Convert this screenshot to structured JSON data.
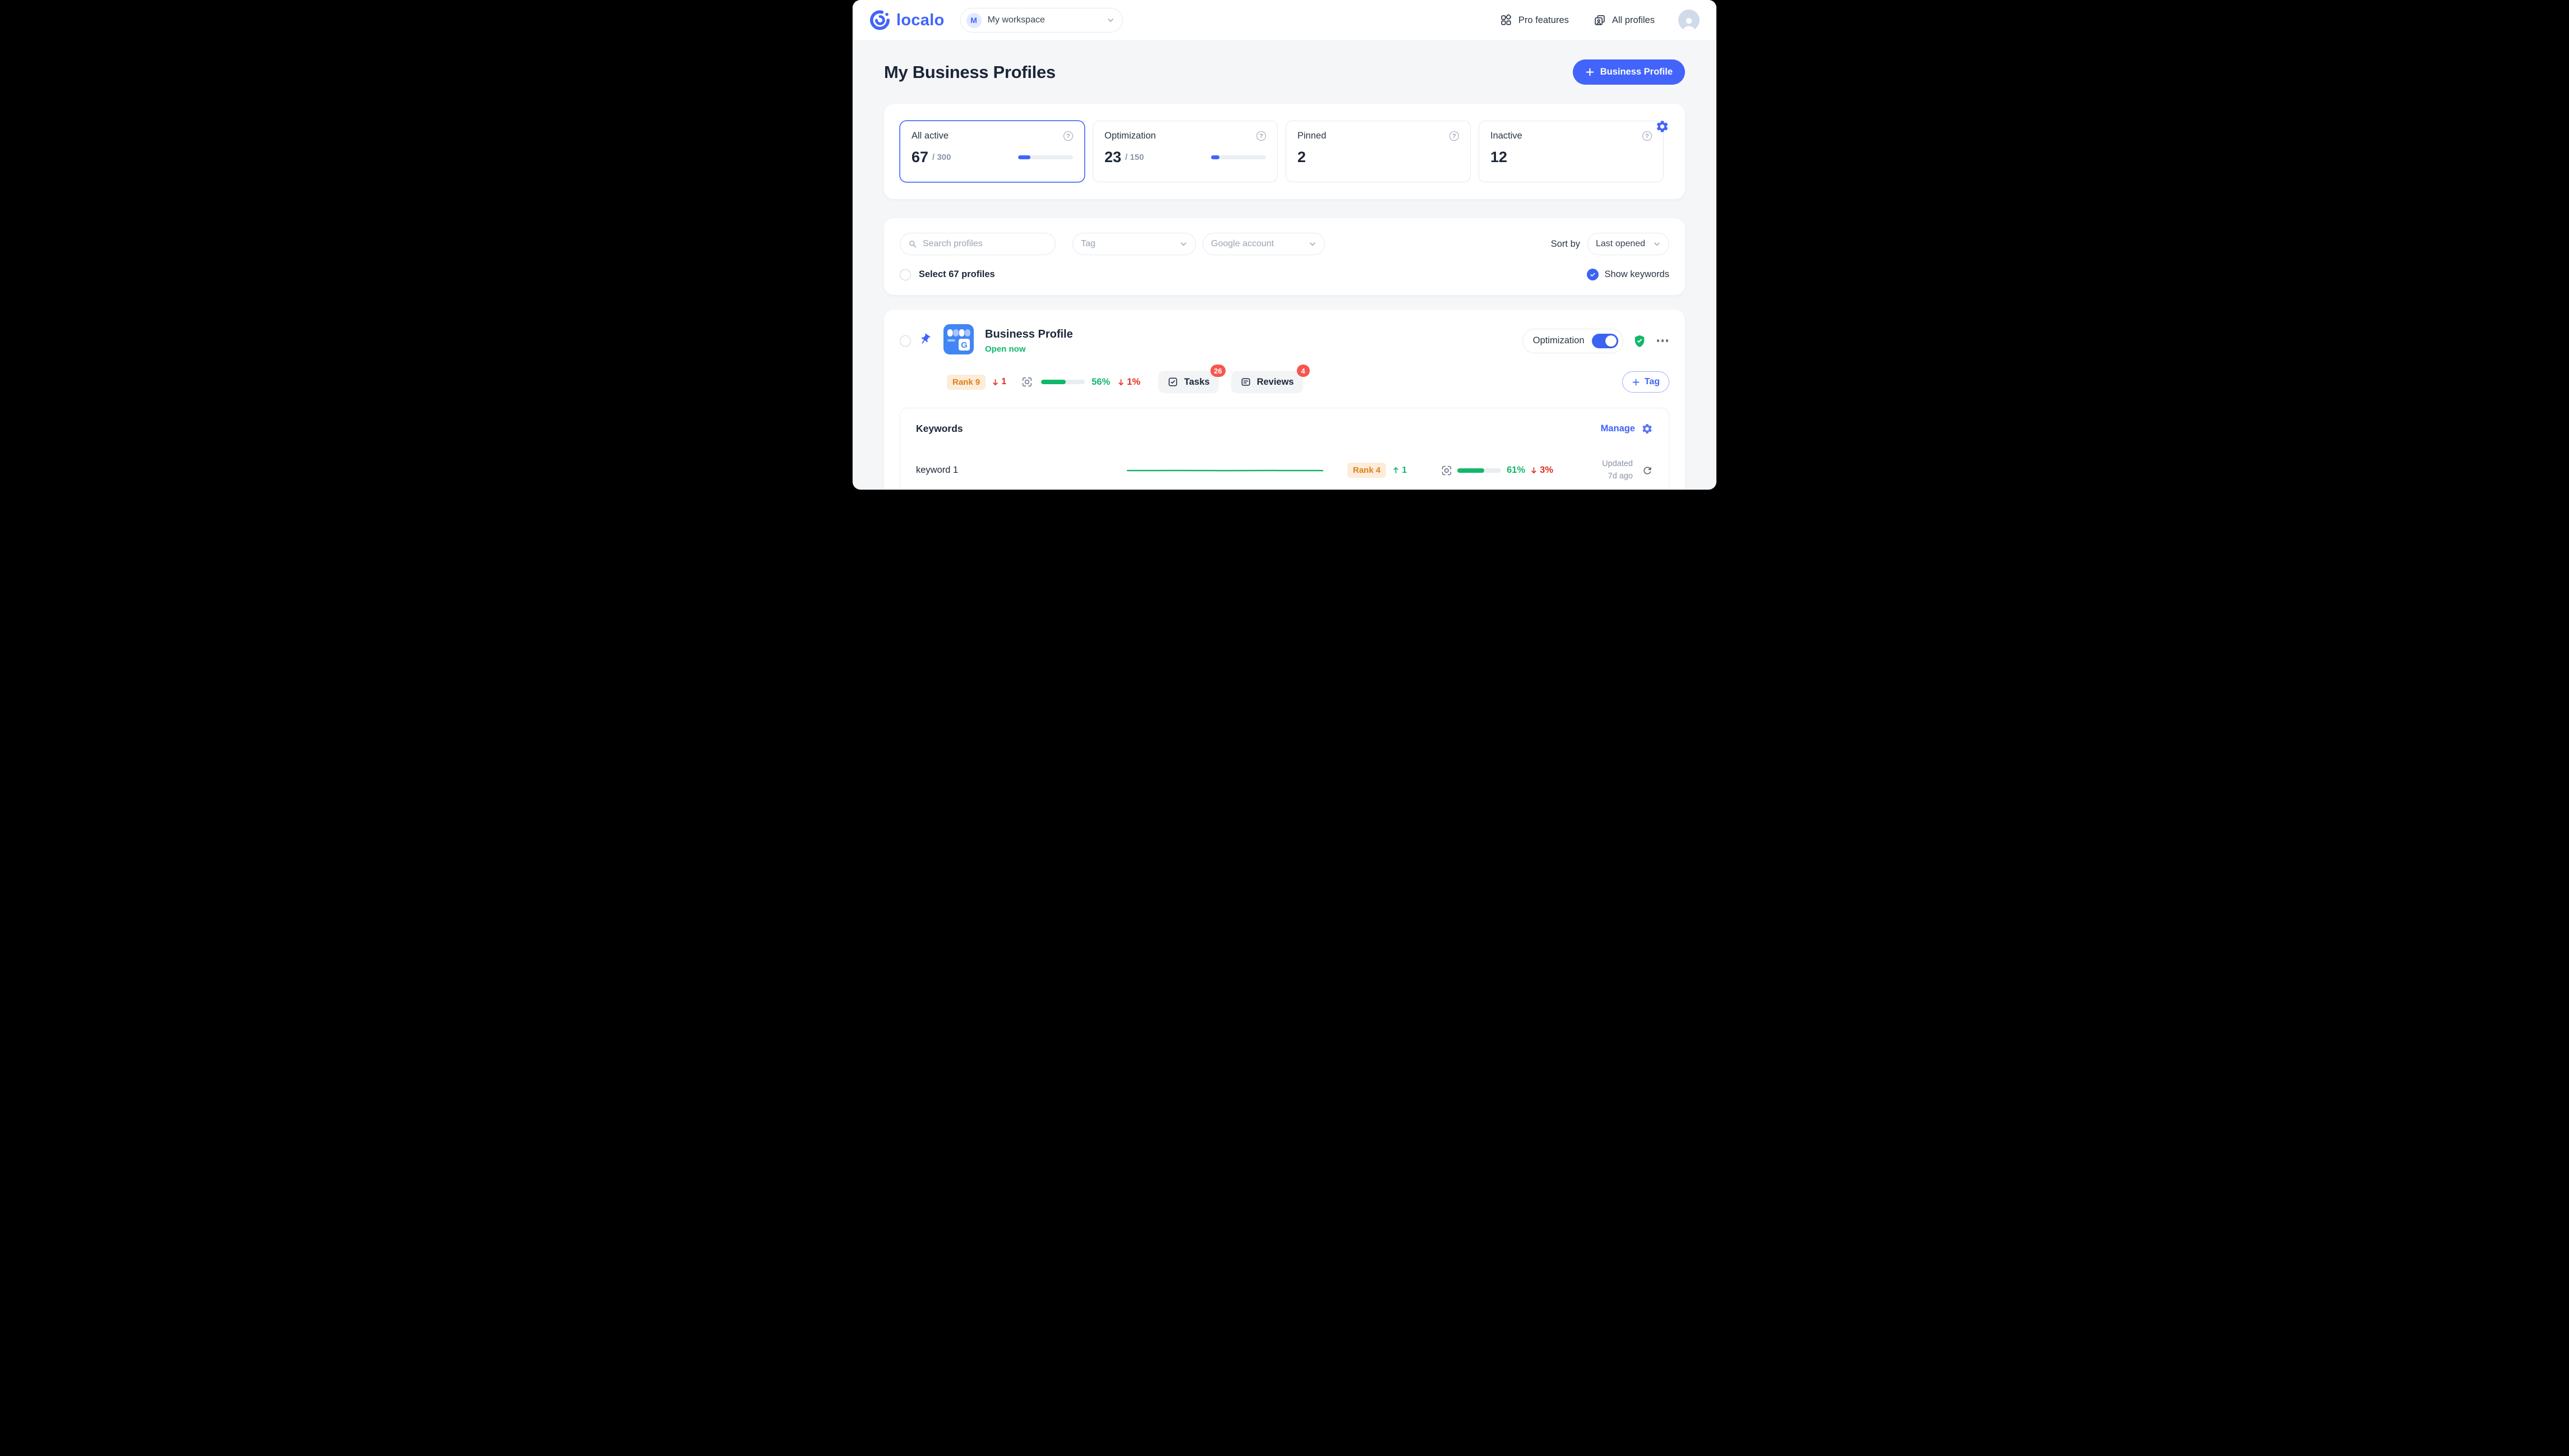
{
  "ui": {
    "question_glyph": "?",
    "sort_by_label": "Sort by"
  },
  "header": {
    "logo_text": "localo",
    "workspace_initial": "M",
    "workspace_name": "My workspace",
    "pro_features_label": "Pro features",
    "all_profiles_label": "All profiles"
  },
  "page": {
    "title": "My Business Profiles",
    "new_profile_button_label": "Business Profile"
  },
  "stats": {
    "cards": [
      {
        "label": "All active",
        "value": "67",
        "max": "/ 300",
        "progress_percent": 22
      },
      {
        "label": "Optimization",
        "value": "23",
        "max": "/ 150",
        "progress_percent": 15
      },
      {
        "label": "Pinned",
        "value": "2"
      },
      {
        "label": "Inactive",
        "value": "12"
      }
    ]
  },
  "filters": {
    "search_placeholder": "Search profiles",
    "tag_placeholder": "Tag",
    "google_account_placeholder": "Google account",
    "sort_value": "Last opened",
    "select_profiles_label": "Select 67 profiles",
    "show_keywords_label": "Show keywords"
  },
  "profile": {
    "name": "Business Profile",
    "status": "Open now",
    "optimization_toggle_label": "Optimization",
    "optimization_on": true,
    "rank_badge": "Rank 9",
    "rank_change": "1",
    "score_percent_label": "56%",
    "score_percent": 56,
    "score_change": "1%",
    "tasks_label": "Tasks",
    "tasks_count": "26",
    "reviews_label": "Reviews",
    "reviews_count": "4",
    "add_tag_label": "Tag"
  },
  "keywords_section": {
    "title": "Keywords",
    "manage_label": "Manage",
    "rows": [
      {
        "name": "keyword 1",
        "sparkline": [
          5,
          5,
          5.05,
          5,
          4.95,
          5,
          5.05,
          5,
          5
        ],
        "rank_badge": "Rank 4",
        "rank_change": "1",
        "score_percent_label": "61%",
        "score_percent": 61,
        "score_change": "3%",
        "updated_line1": "Updated",
        "updated_line2": "7d ago"
      }
    ]
  },
  "colors": {
    "accent_blue": "#4264fb",
    "green": "#12b76a",
    "red": "#e02d23",
    "rank_orange_text": "#df7f17",
    "rank_orange_bg": "#fcecd9",
    "badge_red": "#f6564f"
  }
}
